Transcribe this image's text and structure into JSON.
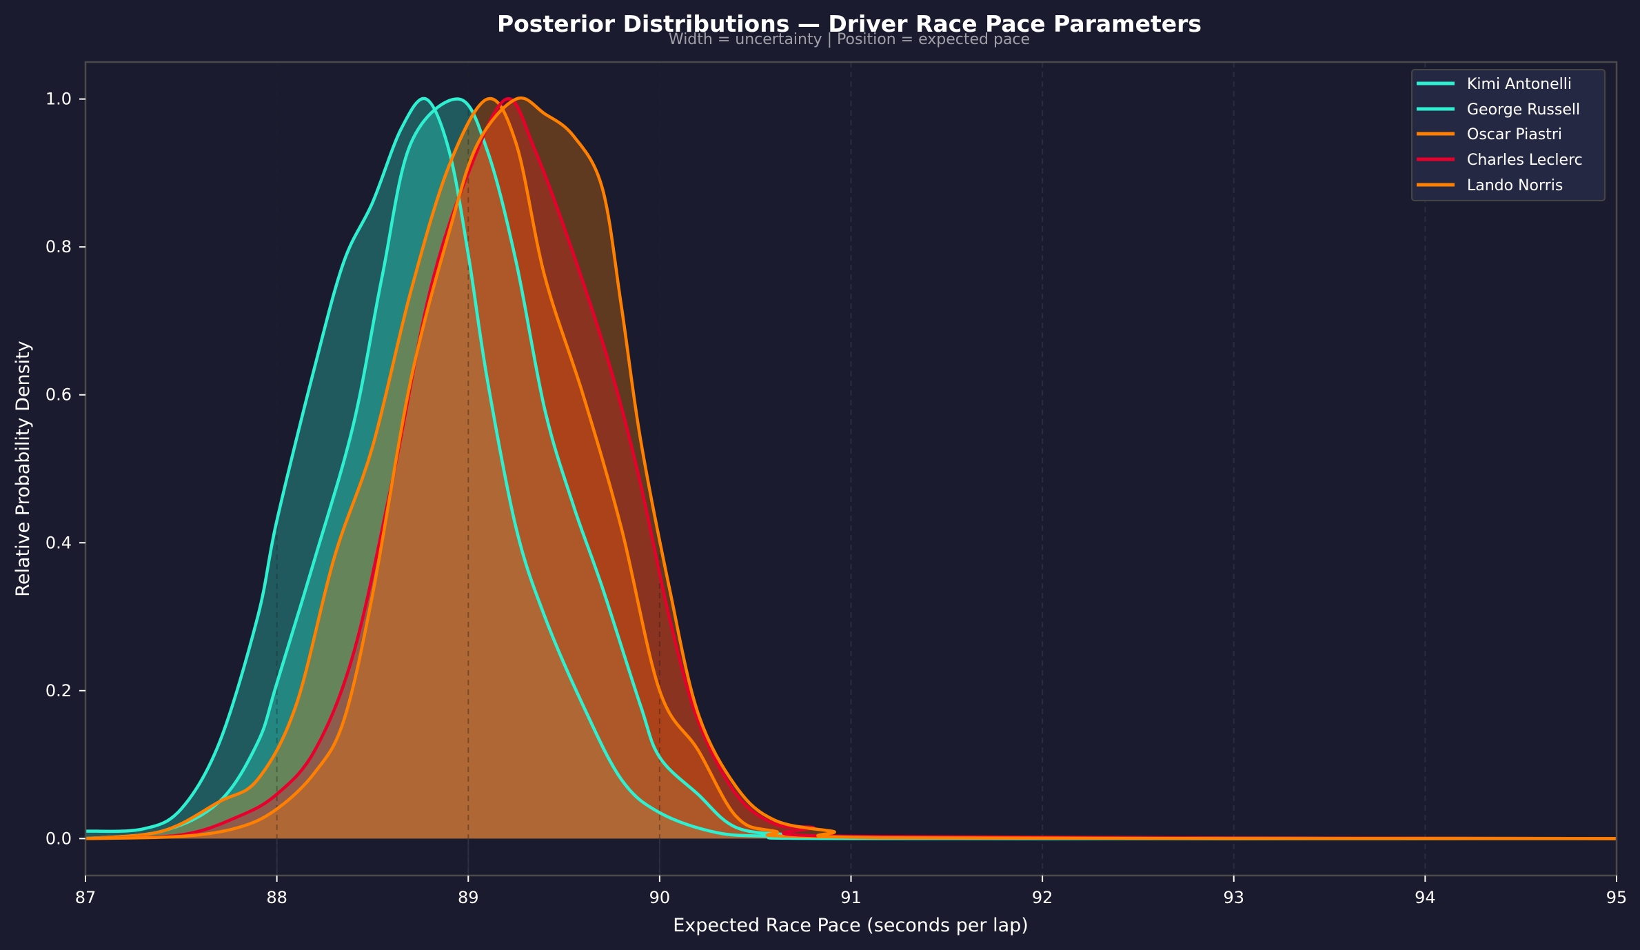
{
  "chart_data": {
    "type": "area",
    "title": "Posterior Distributions — Driver Race Pace Parameters",
    "subtitle": "Width = uncertainty | Position = expected pace",
    "xlabel": "Expected Race Pace (seconds per lap)",
    "ylabel": "Relative Probability Density",
    "xlim": [
      87,
      95
    ],
    "ylim": [
      -0.05,
      1.05
    ],
    "xticks": [
      "87",
      "88",
      "89",
      "90",
      "91",
      "92",
      "93",
      "94",
      "95"
    ],
    "yticks": [
      "0.0",
      "0.2",
      "0.4",
      "0.6",
      "0.8",
      "1.0"
    ],
    "grid": "vertical dashed at integer x",
    "reference_lines": [
      88,
      89,
      90
    ],
    "legend_position": "upper right",
    "series": [
      {
        "name": "Kimi Antonelli",
        "color": "#2ef0d0",
        "fill": "#1d5c5c",
        "peak_x": 88.78,
        "points": [
          [
            87,
            0.01
          ],
          [
            87.3,
            0.013
          ],
          [
            87.5,
            0.04
          ],
          [
            87.7,
            0.13
          ],
          [
            87.9,
            0.3
          ],
          [
            88.0,
            0.43
          ],
          [
            88.2,
            0.64
          ],
          [
            88.35,
            0.78
          ],
          [
            88.5,
            0.86
          ],
          [
            88.65,
            0.96
          ],
          [
            88.78,
            1.0
          ],
          [
            88.9,
            0.93
          ],
          [
            89.0,
            0.79
          ],
          [
            89.1,
            0.62
          ],
          [
            89.25,
            0.42
          ],
          [
            89.4,
            0.3
          ],
          [
            89.6,
            0.18
          ],
          [
            89.8,
            0.08
          ],
          [
            90.0,
            0.035
          ],
          [
            90.3,
            0.008
          ],
          [
            90.6,
            0.003
          ],
          [
            91,
            0
          ],
          [
            95,
            0
          ]
        ]
      },
      {
        "name": "George Russell",
        "color": "#2ef0d0",
        "fill": "#208a82",
        "peak_x": 88.95,
        "points": [
          [
            87,
            0
          ],
          [
            87.4,
            0.01
          ],
          [
            87.7,
            0.05
          ],
          [
            87.9,
            0.13
          ],
          [
            88.0,
            0.21
          ],
          [
            88.2,
            0.38
          ],
          [
            88.4,
            0.56
          ],
          [
            88.55,
            0.76
          ],
          [
            88.7,
            0.94
          ],
          [
            88.95,
            1.0
          ],
          [
            89.1,
            0.93
          ],
          [
            89.25,
            0.78
          ],
          [
            89.4,
            0.58
          ],
          [
            89.55,
            0.45
          ],
          [
            89.7,
            0.34
          ],
          [
            89.9,
            0.18
          ],
          [
            90.0,
            0.11
          ],
          [
            90.2,
            0.06
          ],
          [
            90.4,
            0.015
          ],
          [
            90.7,
            0.005
          ],
          [
            91,
            0.002
          ],
          [
            95,
            0
          ]
        ]
      },
      {
        "name": "Oscar Piastri",
        "color": "#ff8000",
        "fill": "#66885a",
        "peak_x": 89.1,
        "points": [
          [
            87,
            0
          ],
          [
            87.4,
            0.01
          ],
          [
            87.7,
            0.05
          ],
          [
            87.9,
            0.08
          ],
          [
            88.1,
            0.18
          ],
          [
            88.3,
            0.38
          ],
          [
            88.5,
            0.53
          ],
          [
            88.7,
            0.74
          ],
          [
            88.9,
            0.91
          ],
          [
            89.1,
            1.0
          ],
          [
            89.25,
            0.94
          ],
          [
            89.4,
            0.76
          ],
          [
            89.6,
            0.6
          ],
          [
            89.8,
            0.42
          ],
          [
            90.0,
            0.2
          ],
          [
            90.2,
            0.12
          ],
          [
            90.4,
            0.03
          ],
          [
            90.6,
            0.01
          ],
          [
            91,
            0.002
          ],
          [
            95,
            0
          ]
        ]
      },
      {
        "name": "Charles Leclerc",
        "color": "#e8002d",
        "fill": "#8a3020",
        "peak_x": 89.2,
        "points": [
          [
            87,
            0
          ],
          [
            87.5,
            0.005
          ],
          [
            87.8,
            0.03
          ],
          [
            88.0,
            0.06
          ],
          [
            88.2,
            0.12
          ],
          [
            88.4,
            0.25
          ],
          [
            88.6,
            0.48
          ],
          [
            88.8,
            0.74
          ],
          [
            89.0,
            0.9
          ],
          [
            89.2,
            1.0
          ],
          [
            89.35,
            0.93
          ],
          [
            89.55,
            0.79
          ],
          [
            89.75,
            0.63
          ],
          [
            89.9,
            0.48
          ],
          [
            90.05,
            0.3
          ],
          [
            90.2,
            0.16
          ],
          [
            90.4,
            0.06
          ],
          [
            90.6,
            0.02
          ],
          [
            90.8,
            0.015
          ],
          [
            91,
            0.003
          ],
          [
            95,
            0
          ]
        ]
      },
      {
        "name": "Lando Norris",
        "color": "#ff8000",
        "fill": "#5e3820",
        "peak_x": 89.25,
        "points": [
          [
            87,
            0
          ],
          [
            87.5,
            0.003
          ],
          [
            87.8,
            0.015
          ],
          [
            88.0,
            0.04
          ],
          [
            88.2,
            0.09
          ],
          [
            88.35,
            0.16
          ],
          [
            88.5,
            0.33
          ],
          [
            88.7,
            0.62
          ],
          [
            88.9,
            0.82
          ],
          [
            89.05,
            0.94
          ],
          [
            89.25,
            1.0
          ],
          [
            89.4,
            0.98
          ],
          [
            89.55,
            0.95
          ],
          [
            89.7,
            0.88
          ],
          [
            89.8,
            0.72
          ],
          [
            89.9,
            0.54
          ],
          [
            90.05,
            0.34
          ],
          [
            90.2,
            0.17
          ],
          [
            90.4,
            0.07
          ],
          [
            90.6,
            0.025
          ],
          [
            90.9,
            0.01
          ],
          [
            91.2,
            0.001
          ],
          [
            95,
            0
          ]
        ]
      }
    ]
  },
  "legend": {
    "items": [
      {
        "label": "Kimi Antonelli",
        "color": "#2ef0d0"
      },
      {
        "label": "George Russell",
        "color": "#2ef0d0"
      },
      {
        "label": "Oscar Piastri",
        "color": "#ff8000"
      },
      {
        "label": "Charles Leclerc",
        "color": "#e8002d"
      },
      {
        "label": "Lando Norris",
        "color": "#ff8000"
      }
    ]
  },
  "colors": {
    "background": "#1a1b2e",
    "axes_edge": "#4a4a4a",
    "legend_bg": "#252842",
    "overlap_fill": "#ad6835"
  }
}
